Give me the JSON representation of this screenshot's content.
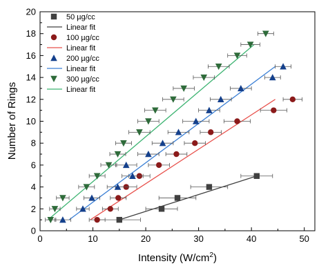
{
  "chart_data": {
    "type": "scatter",
    "title": "",
    "xlabel": "Intensity (W/cm",
    "xlabel_sup": "2",
    "xlabel_end": ")",
    "ylabel": "Number of Rings",
    "xlim": [
      0,
      52
    ],
    "ylim": [
      0,
      20
    ],
    "xticks": [
      0,
      10,
      20,
      30,
      40,
      50
    ],
    "yticks": [
      0,
      2,
      4,
      6,
      8,
      10,
      12,
      14,
      16,
      18,
      20
    ],
    "grid": false,
    "legend_position": "top-left",
    "series": [
      {
        "name": "50 µg/cc",
        "fit_name": "Linear fit",
        "color": "#404040",
        "fit_color": "#404040",
        "marker": "square",
        "points": [
          {
            "x": 15.0,
            "y": 1,
            "xerr": 4.0
          },
          {
            "x": 23.0,
            "y": 2,
            "xerr": 3.0
          },
          {
            "x": 26.0,
            "y": 3,
            "xerr": 3.5
          },
          {
            "x": 32.0,
            "y": 4,
            "xerr": 3.5
          },
          {
            "x": 41.0,
            "y": 5,
            "xerr": 3.0
          }
        ],
        "fit": [
          [
            15.0,
            1
          ],
          [
            41.0,
            5
          ]
        ]
      },
      {
        "name": "100 µg/cc",
        "fit_name": "Linear fit",
        "color": "#8b1a1a",
        "fit_color": "#e8504b",
        "marker": "circle",
        "points": [
          {
            "x": 10.8,
            "y": 1,
            "xerr": 1.5
          },
          {
            "x": 13.3,
            "y": 2,
            "xerr": 1.5
          },
          {
            "x": 14.8,
            "y": 3,
            "xerr": 1.5
          },
          {
            "x": 16.3,
            "y": 4,
            "xerr": 2.0
          },
          {
            "x": 18.8,
            "y": 5,
            "xerr": 2.0
          },
          {
            "x": 22.5,
            "y": 6,
            "xerr": 2.0
          },
          {
            "x": 25.8,
            "y": 7,
            "xerr": 2.0
          },
          {
            "x": 29.3,
            "y": 8,
            "xerr": 2.0
          },
          {
            "x": 32.3,
            "y": 9,
            "xerr": 2.0
          },
          {
            "x": 37.3,
            "y": 10,
            "xerr": 2.5
          },
          {
            "x": 44.2,
            "y": 11,
            "xerr": 2.5
          },
          {
            "x": 47.8,
            "y": 12,
            "xerr": 1.8
          }
        ],
        "fit": [
          [
            9.5,
            1
          ],
          [
            44.5,
            12
          ]
        ]
      },
      {
        "name": "200 µg/cc",
        "fit_name": "Linear fit",
        "color": "#14408c",
        "fit_color": "#3a7fd5",
        "marker": "triangle-up",
        "points": [
          {
            "x": 4.3,
            "y": 1,
            "xerr": 1.5
          },
          {
            "x": 8.1,
            "y": 2,
            "xerr": 1.2
          },
          {
            "x": 9.8,
            "y": 3,
            "xerr": 1.5
          },
          {
            "x": 14.7,
            "y": 4,
            "xerr": 2.0
          },
          {
            "x": 17.5,
            "y": 5,
            "xerr": 2.0
          },
          {
            "x": 16.3,
            "y": 6,
            "xerr": 2.0
          },
          {
            "x": 20.5,
            "y": 7,
            "xerr": 2.0
          },
          {
            "x": 23.2,
            "y": 8,
            "xerr": 2.0
          },
          {
            "x": 26.2,
            "y": 9,
            "xerr": 2.0
          },
          {
            "x": 29.5,
            "y": 10,
            "xerr": 2.5
          },
          {
            "x": 32.0,
            "y": 11,
            "xerr": 2.0
          },
          {
            "x": 34.2,
            "y": 12,
            "xerr": 2.0
          },
          {
            "x": 38.0,
            "y": 13,
            "xerr": 2.0
          },
          {
            "x": 44.0,
            "y": 14,
            "xerr": 1.5
          },
          {
            "x": 46.0,
            "y": 15,
            "xerr": 1.5
          }
        ],
        "fit": [
          [
            5.5,
            1
          ],
          [
            44.5,
            15
          ]
        ]
      },
      {
        "name": "300 µg/cc",
        "fit_name": "Linear fit",
        "color": "#2e6b3a",
        "fit_color": "#3cb371",
        "marker": "triangle-down",
        "points": [
          {
            "x": 2.0,
            "y": 1,
            "xerr": 1.0
          },
          {
            "x": 2.8,
            "y": 2,
            "xerr": 1.0
          },
          {
            "x": 4.3,
            "y": 3,
            "xerr": 1.2
          },
          {
            "x": 8.8,
            "y": 4,
            "xerr": 1.5
          },
          {
            "x": 10.8,
            "y": 5,
            "xerr": 1.5
          },
          {
            "x": 13.0,
            "y": 6,
            "xerr": 1.5
          },
          {
            "x": 14.7,
            "y": 7,
            "xerr": 1.5
          },
          {
            "x": 15.8,
            "y": 8,
            "xerr": 1.5
          },
          {
            "x": 18.8,
            "y": 9,
            "xerr": 2.0
          },
          {
            "x": 20.5,
            "y": 10,
            "xerr": 2.0
          },
          {
            "x": 21.8,
            "y": 11,
            "xerr": 2.0
          },
          {
            "x": 25.2,
            "y": 12,
            "xerr": 2.0
          },
          {
            "x": 27.2,
            "y": 13,
            "xerr": 2.0
          },
          {
            "x": 31.0,
            "y": 14,
            "xerr": 2.0
          },
          {
            "x": 33.8,
            "y": 15,
            "xerr": 2.0
          },
          {
            "x": 37.3,
            "y": 16,
            "xerr": 1.8
          },
          {
            "x": 39.8,
            "y": 17,
            "xerr": 1.8
          },
          {
            "x": 42.7,
            "y": 18,
            "xerr": 1.5
          }
        ],
        "fit": [
          [
            1.5,
            1
          ],
          [
            40.5,
            17
          ]
        ]
      }
    ]
  }
}
